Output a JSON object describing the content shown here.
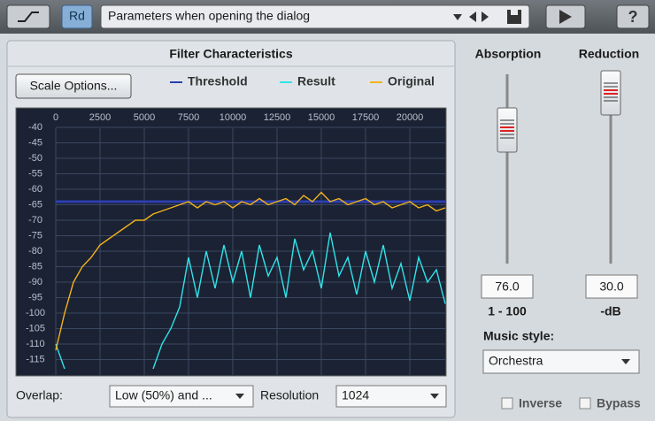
{
  "toolbar": {
    "preset_button": "Rd",
    "preset": "Parameters when opening the dialog",
    "help": "?"
  },
  "panel": {
    "title": "Filter Characteristics",
    "scale_button": "Scale Options...",
    "overlap_label": "Overlap:",
    "overlap_value": "Low (50%) and ...",
    "resolution_label": "Resolution",
    "resolution_value": "1024"
  },
  "chart_data": {
    "type": "line",
    "x": [
      0,
      500,
      1000,
      1500,
      2000,
      2500,
      3000,
      3500,
      4000,
      4500,
      5000,
      5500,
      6000,
      6500,
      7000,
      7500,
      8000,
      8500,
      9000,
      9500,
      10000,
      10500,
      11000,
      11500,
      12000,
      12500,
      13000,
      13500,
      14000,
      14500,
      15000,
      15500,
      16000,
      16500,
      17000,
      17500,
      18000,
      18500,
      19000,
      19500,
      20000,
      20500,
      21000,
      21500,
      22000
    ],
    "series": [
      {
        "name": "Threshold",
        "color": "#2b3fb0",
        "values": [
          -64,
          -64,
          -64,
          -64,
          -64,
          -64,
          -64,
          -64,
          -64,
          -64,
          -64,
          -64,
          -64,
          -64,
          -64,
          -64,
          -64,
          -64,
          -64,
          -64,
          -64,
          -64,
          -64,
          -64,
          -64,
          -64,
          -64,
          -64,
          -64,
          -64,
          -64,
          -64,
          -64,
          -64,
          -64,
          -64,
          -64,
          -64,
          -64,
          -64,
          -64,
          -64,
          -64,
          -64,
          -64
        ]
      },
      {
        "name": "Result",
        "color": "#2fe4ea",
        "values": [
          -110,
          -118,
          null,
          null,
          null,
          null,
          null,
          null,
          null,
          null,
          null,
          -118,
          -110,
          -105,
          -98,
          -82,
          -95,
          -80,
          -92,
          -78,
          -90,
          -80,
          -95,
          -78,
          -88,
          -82,
          -95,
          -76,
          -86,
          -80,
          -92,
          -74,
          -88,
          -82,
          -94,
          -80,
          -90,
          -78,
          -92,
          -84,
          -96,
          -82,
          -90,
          -86,
          -97
        ]
      },
      {
        "name": "Original",
        "color": "#f2b21e",
        "values": [
          -112,
          -100,
          -90,
          -85,
          -82,
          -78,
          -76,
          -74,
          -72,
          -70,
          -70,
          -68,
          -67,
          -66,
          -65,
          -64,
          -66,
          -64,
          -65,
          -64,
          -66,
          -64,
          -65,
          -63,
          -65,
          -64,
          -63,
          -65,
          -62,
          -64,
          -61,
          -64,
          -63,
          -65,
          -64,
          -63,
          -65,
          -64,
          -66,
          -65,
          -64,
          -66,
          -65,
          -67,
          -66
        ]
      }
    ],
    "xlim": [
      0,
      22000
    ],
    "ylim": [
      -120,
      -38
    ],
    "xticks": [
      0,
      2500,
      5000,
      7500,
      10000,
      12500,
      15000,
      17500,
      20000
    ],
    "yticks": [
      -40,
      -45,
      -50,
      -55,
      -60,
      -65,
      -70,
      -75,
      -80,
      -85,
      -90,
      -95,
      -100,
      -105,
      -110,
      -115
    ],
    "grid": true,
    "legend": "top-right"
  },
  "controls": {
    "absorption_label": "Absorption",
    "reduction_label": "Reduction",
    "absorption_value": "76.0",
    "reduction_value": "30.0",
    "absorption_range": "1 - 100",
    "reduction_unit": "-dB",
    "music_style_label": "Music style:",
    "music_style_value": "Orchestra",
    "inverse": "Inverse",
    "bypass": "Bypass"
  }
}
